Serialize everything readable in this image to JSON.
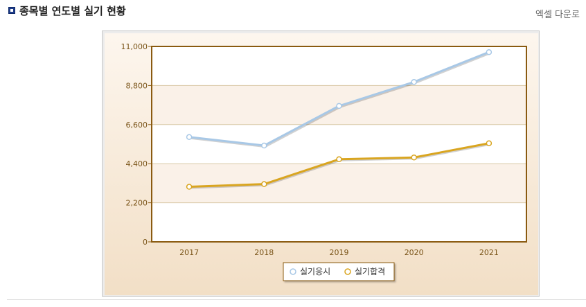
{
  "header": {
    "title": "종목별 연도별 실기 현황",
    "excel_link": "엑셀 다운로"
  },
  "colors": {
    "series_1": "#a8c8e6",
    "series_2": "#d9a520",
    "frame": "#8a5a10",
    "band": "#faf1e8"
  },
  "chart_data": {
    "type": "line",
    "title": "",
    "xlabel": "",
    "ylabel": "",
    "categories": [
      "2017",
      "2018",
      "2019",
      "2020",
      "2021"
    ],
    "ylim": [
      0,
      11000
    ],
    "yticks": [
      0,
      2200,
      4400,
      6600,
      8800,
      11000
    ],
    "ytick_labels": [
      "0",
      "2,200",
      "4,400",
      "6,600",
      "8,800",
      "11,000"
    ],
    "grid": true,
    "legend_position": "bottom",
    "series": [
      {
        "name": "실기응시",
        "values": [
          5900,
          5420,
          7650,
          9000,
          10680
        ]
      },
      {
        "name": "실기합격",
        "values": [
          3100,
          3250,
          4650,
          4750,
          5550
        ]
      }
    ]
  }
}
